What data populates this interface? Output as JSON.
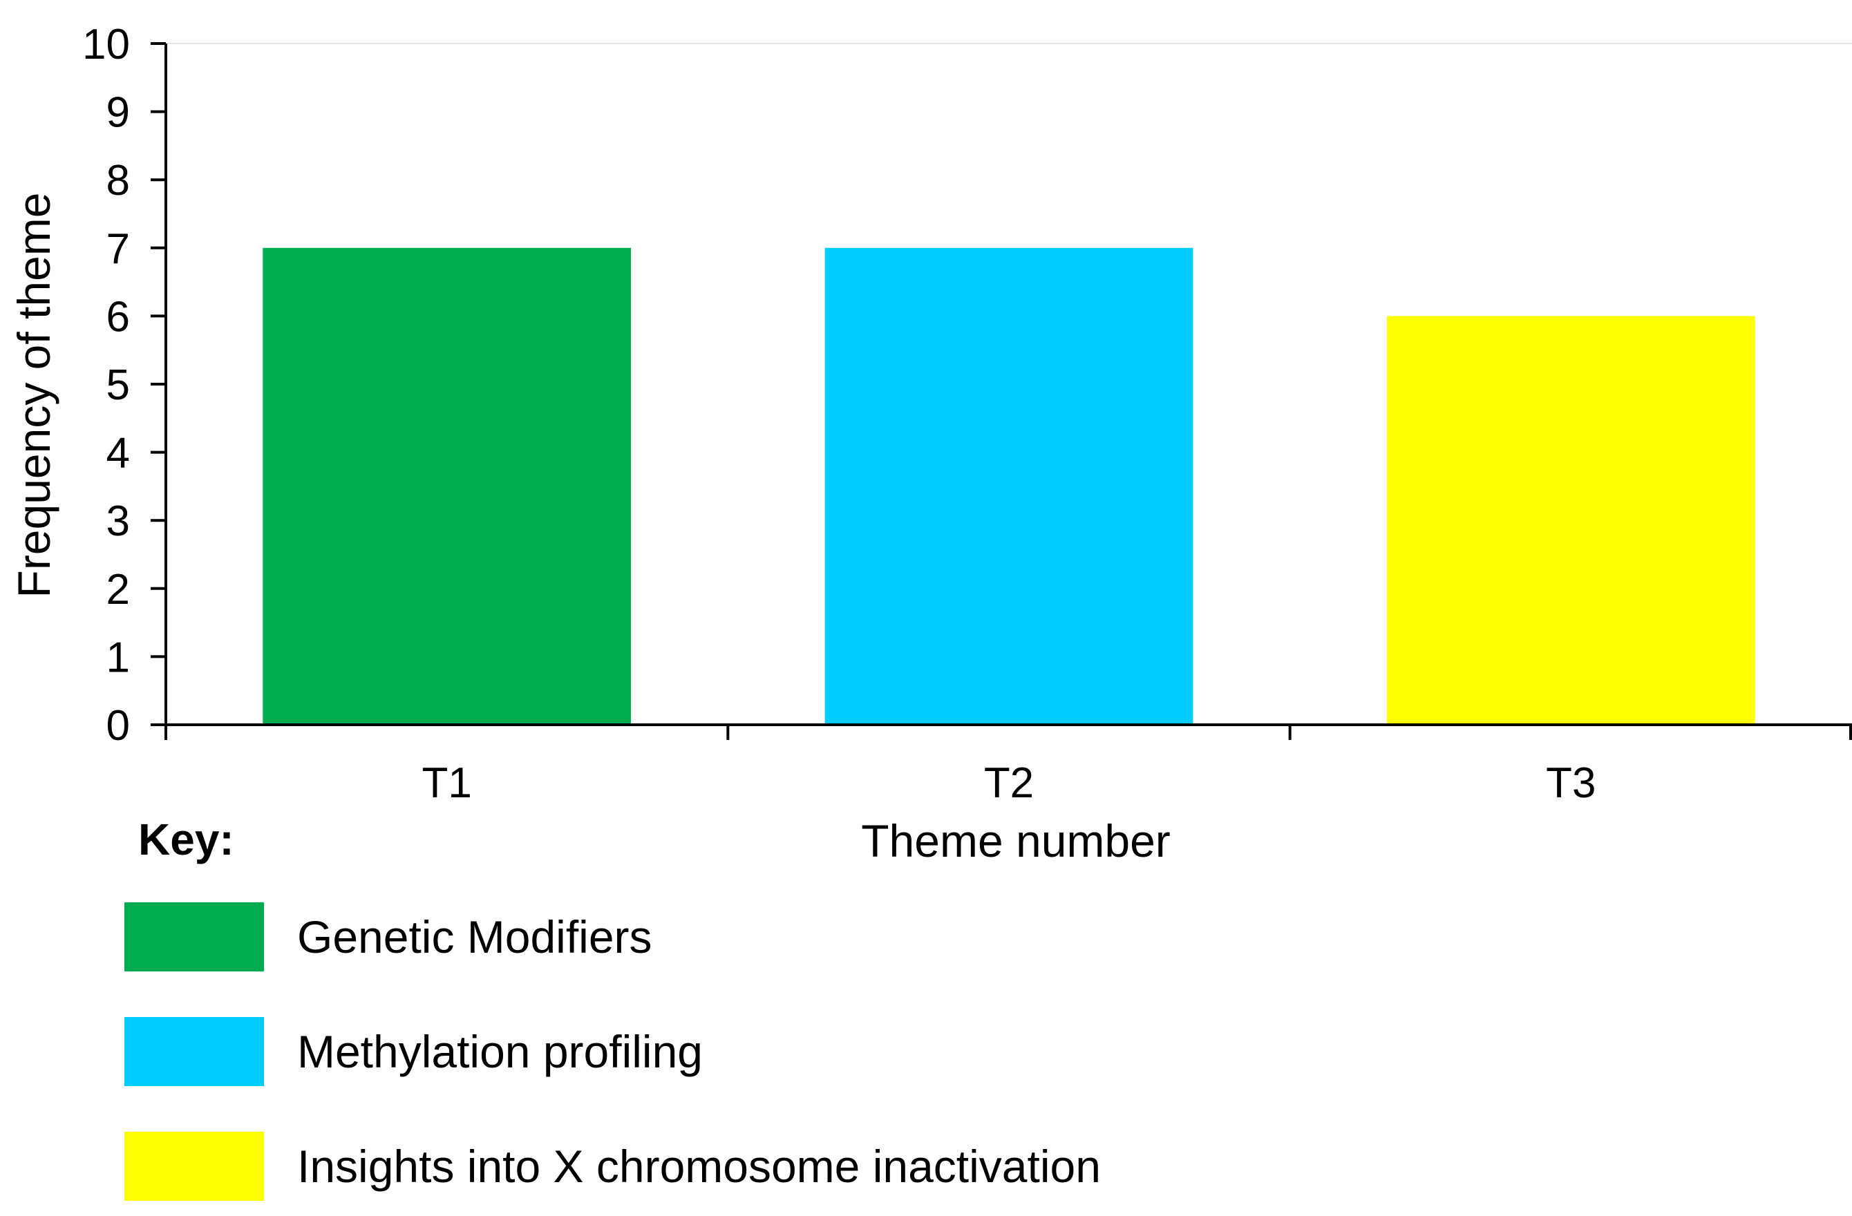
{
  "chart_data": {
    "type": "bar",
    "categories": [
      "T1",
      "T2",
      "T3"
    ],
    "values": [
      7,
      7,
      6
    ],
    "colors": [
      "#00ac4f",
      "#00ccff",
      "#ffff00"
    ],
    "xlabel": "Theme number",
    "ylabel": "Frequency of theme",
    "ylim": [
      0,
      10
    ],
    "yticks": [
      "0",
      "1",
      "2",
      "3",
      "4",
      "5",
      "6",
      "7",
      "8",
      "9",
      "10"
    ],
    "grid": false,
    "legend_position": "bottom-left"
  },
  "key": {
    "title": "Key:",
    "items": [
      {
        "label": "Genetic Modifiers",
        "color": "#00ac4f"
      },
      {
        "label": "Methylation profiling",
        "color": "#00ccff"
      },
      {
        "label": "Insights into X chromosome inactivation",
        "color": "#ffff00"
      }
    ]
  }
}
